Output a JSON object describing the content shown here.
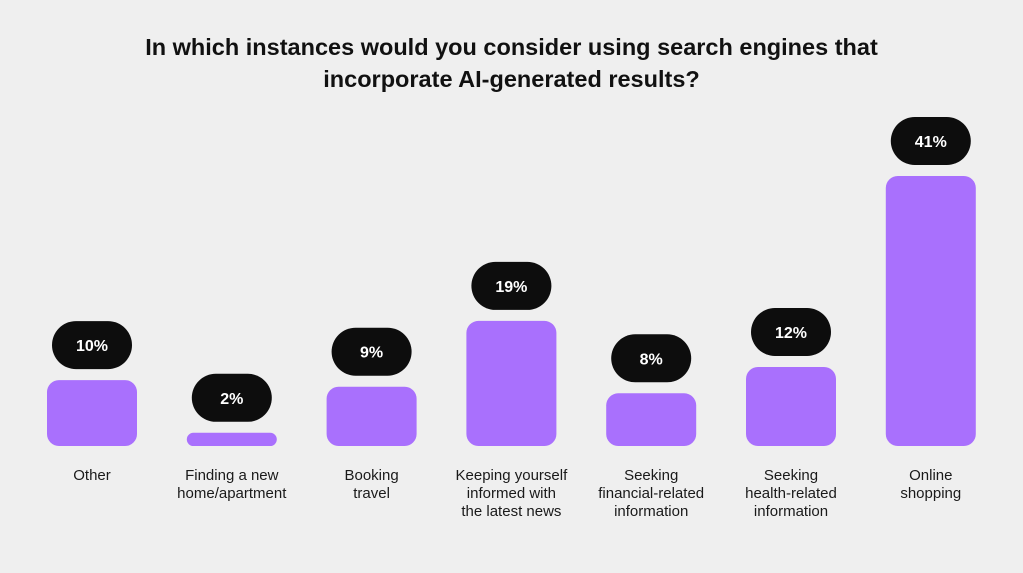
{
  "chart_data": {
    "type": "bar",
    "title_lines": [
      "In which instances would you consider using search engines that",
      "incorporate AI-generated results?"
    ],
    "categories": [
      [
        "Other"
      ],
      [
        "Finding a new",
        "home/apartment"
      ],
      [
        "Booking",
        "travel"
      ],
      [
        "Keeping yourself",
        "informed with",
        "the latest news"
      ],
      [
        "Seeking",
        "financial-related",
        "information"
      ],
      [
        "Seeking",
        "health-related",
        "information"
      ],
      [
        "Online",
        "shopping"
      ]
    ],
    "values": [
      10,
      2,
      9,
      19,
      8,
      12,
      41
    ],
    "value_labels": [
      "10%",
      "2%",
      "9%",
      "19%",
      "8%",
      "12%",
      "41%"
    ],
    "unit": "%",
    "ylim": [
      0,
      41
    ],
    "grid": false,
    "legend": "none",
    "colors": {
      "bar": "#a970fd",
      "pill": "#0d0d0d",
      "pill_text": "#ffffff",
      "background": "#efefef"
    }
  }
}
